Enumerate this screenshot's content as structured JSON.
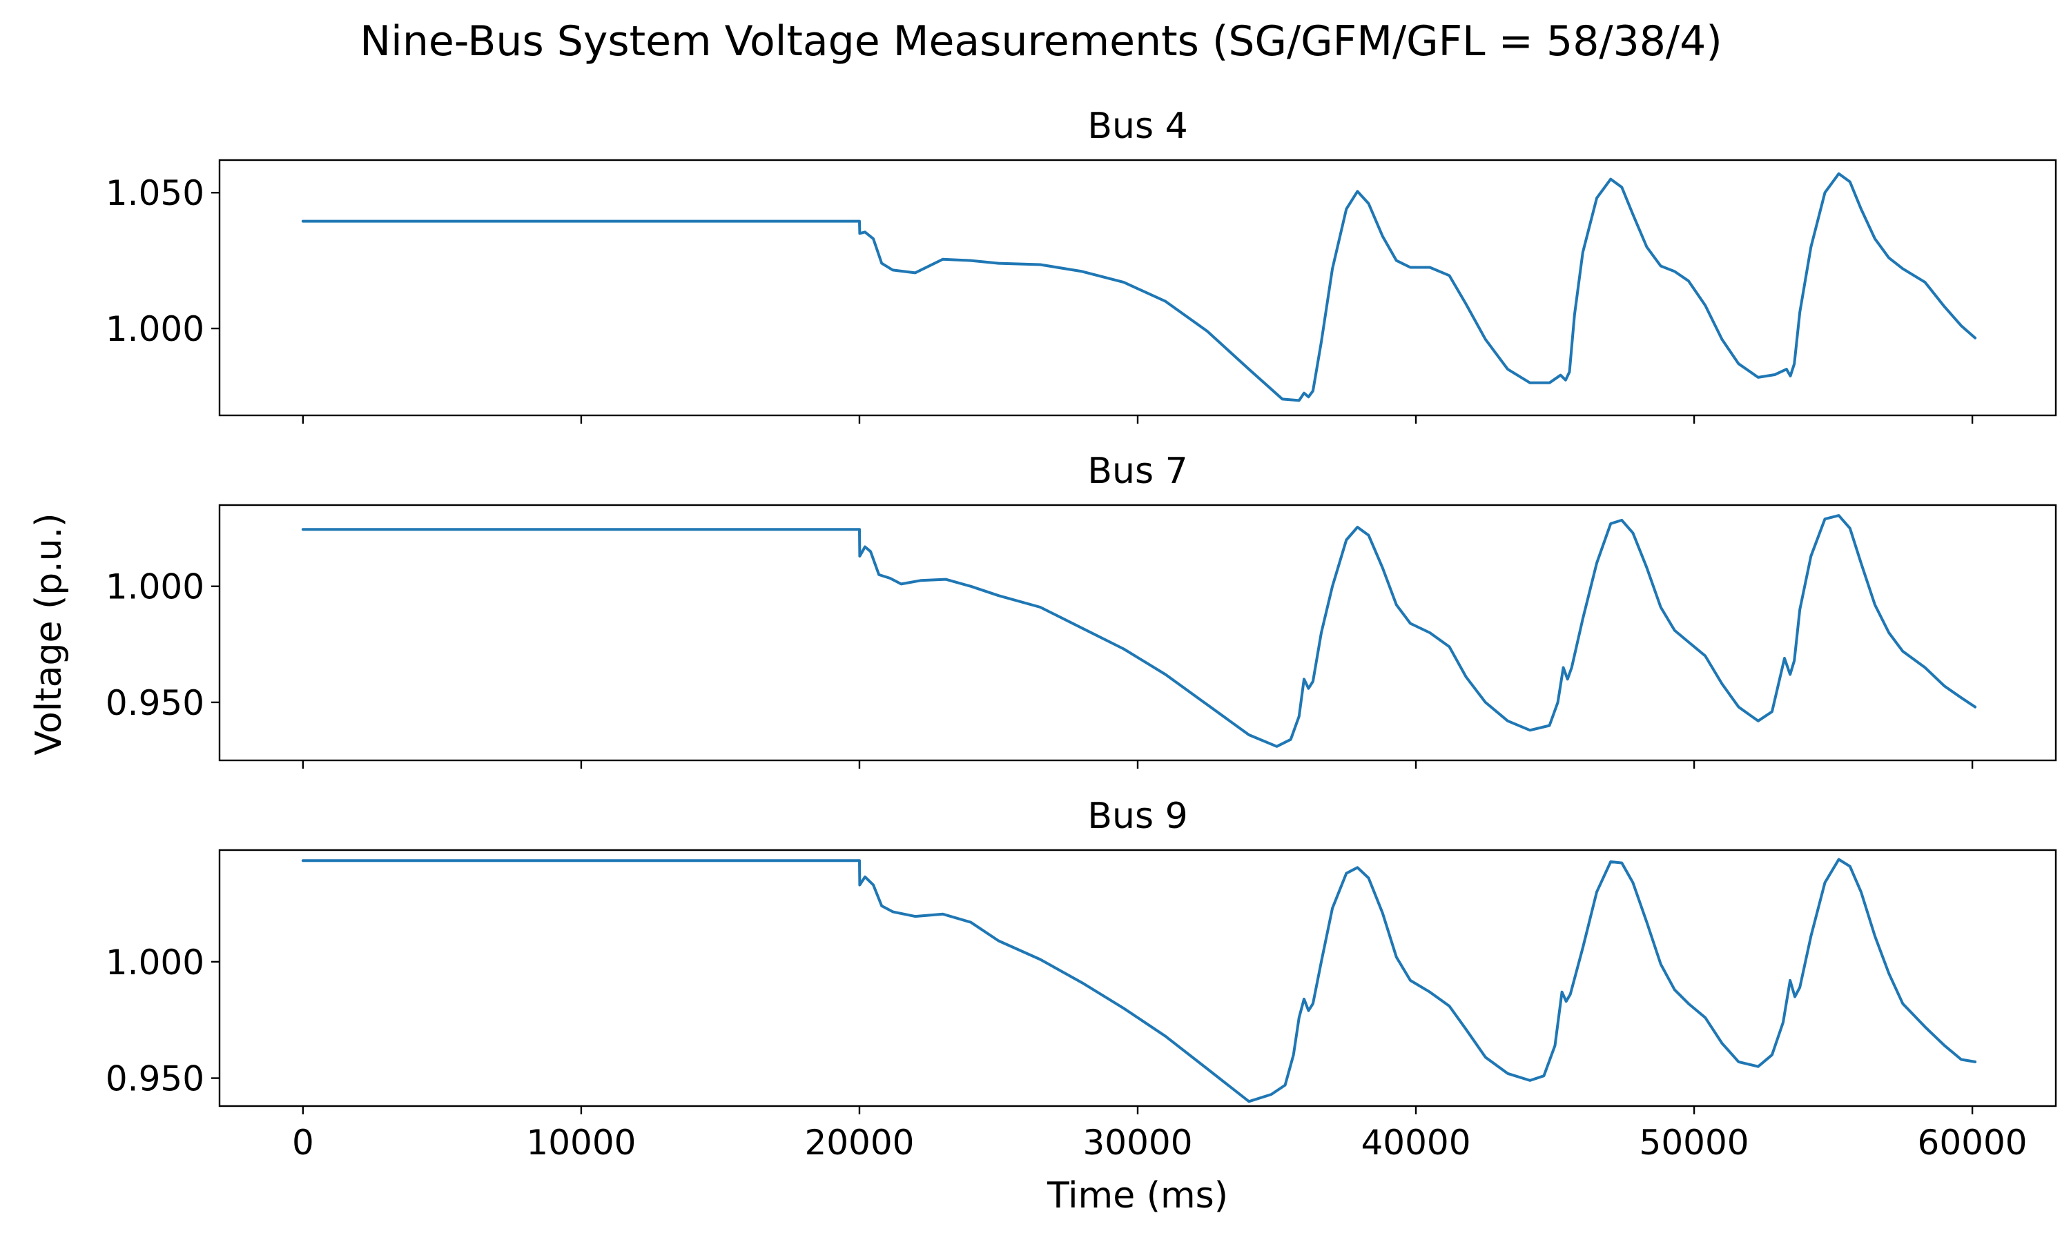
{
  "figure": {
    "title": "Nine-Bus System Voltage Measurements (SG/GFM/GFL = 58/38/4)",
    "xlabel": "Time (ms)",
    "ylabel": "Voltage (p.u.)",
    "line_color": "#1f77b4"
  },
  "chart_data": [
    {
      "type": "line",
      "title": "Bus 4",
      "xlim": [
        -3000,
        63000
      ],
      "ylim": [
        0.968,
        1.062
      ],
      "yticks": [
        1.0,
        1.05
      ],
      "ytick_labels": [
        "1.000",
        "1.050"
      ],
      "xticks": [
        0,
        10000,
        20000,
        30000,
        40000,
        50000,
        60000
      ],
      "xtick_labels": [],
      "series": [
        {
          "x": [
            0,
            20000,
            20010,
            20200,
            20500,
            20800,
            21200,
            22000,
            23000,
            24000,
            25000,
            26500,
            28000,
            29500,
            31000,
            32500,
            34000,
            35200,
            35800,
            35980,
            36140,
            36300,
            36600,
            37000,
            37500,
            37900,
            38300,
            38800,
            39300,
            39800,
            40500,
            41200,
            41800,
            42500,
            43300,
            44100,
            44800,
            45200,
            45380,
            45520,
            45700,
            46000,
            46500,
            47000,
            47400,
            47800,
            48300,
            48800,
            49300,
            49800,
            50400,
            51000,
            51600,
            52300,
            52900,
            53320,
            53460,
            53600,
            53800,
            54200,
            54700,
            55200,
            55600,
            56000,
            56500,
            57000,
            57500,
            58300,
            59000,
            59600,
            60100
          ],
          "y": [
            1.0395,
            1.0395,
            1.035,
            1.0355,
            1.033,
            1.024,
            1.0215,
            1.0205,
            1.0255,
            1.025,
            1.024,
            1.0235,
            1.021,
            1.017,
            1.01,
            0.999,
            0.985,
            0.974,
            0.9735,
            0.9762,
            0.9748,
            0.977,
            0.995,
            1.022,
            1.044,
            1.0505,
            1.046,
            1.034,
            1.025,
            1.0225,
            1.0225,
            1.0195,
            1.009,
            0.996,
            0.985,
            0.98,
            0.98,
            0.9828,
            0.981,
            0.984,
            1.005,
            1.028,
            1.048,
            1.055,
            1.052,
            1.042,
            1.03,
            1.023,
            1.021,
            1.0175,
            1.0085,
            0.996,
            0.987,
            0.982,
            0.983,
            0.985,
            0.9825,
            0.987,
            1.006,
            1.03,
            1.05,
            1.057,
            1.054,
            1.044,
            1.033,
            1.026,
            1.022,
            1.017,
            1.008,
            1.001,
            0.9965
          ]
        }
      ]
    },
    {
      "type": "line",
      "title": "Bus 7",
      "xlim": [
        -3000,
        63000
      ],
      "ylim": [
        0.925,
        1.035
      ],
      "yticks": [
        0.95,
        1.0
      ],
      "ytick_labels": [
        "0.950",
        "1.000"
      ],
      "xticks": [
        0,
        10000,
        20000,
        30000,
        40000,
        50000,
        60000
      ],
      "xtick_labels": [],
      "series": [
        {
          "x": [
            0,
            20000,
            20010,
            20200,
            20400,
            20700,
            21100,
            21500,
            22200,
            23100,
            24000,
            25000,
            26500,
            28000,
            29500,
            31000,
            32500,
            34000,
            35000,
            35500,
            35800,
            35980,
            36140,
            36300,
            36600,
            37000,
            37500,
            37900,
            38300,
            38800,
            39300,
            39800,
            40500,
            41200,
            41800,
            42500,
            43300,
            44100,
            44800,
            45100,
            45300,
            45450,
            45600,
            46000,
            46500,
            47000,
            47400,
            47800,
            48300,
            48800,
            49300,
            49800,
            50400,
            51000,
            51600,
            52300,
            52800,
            53250,
            53450,
            53600,
            53800,
            54200,
            54700,
            55200,
            55600,
            56000,
            56500,
            57000,
            57500,
            58300,
            59000,
            59600,
            60100
          ],
          "y": [
            1.0245,
            1.0245,
            1.013,
            1.017,
            1.015,
            1.005,
            1.0035,
            1.001,
            1.0025,
            1.003,
            1.0,
            0.996,
            0.991,
            0.982,
            0.973,
            0.962,
            0.949,
            0.936,
            0.931,
            0.934,
            0.944,
            0.96,
            0.956,
            0.959,
            0.98,
            1.0,
            1.02,
            1.0255,
            1.022,
            1.008,
            0.992,
            0.984,
            0.98,
            0.974,
            0.961,
            0.95,
            0.942,
            0.938,
            0.94,
            0.95,
            0.965,
            0.96,
            0.965,
            0.986,
            1.01,
            1.027,
            1.0285,
            1.023,
            1.008,
            0.991,
            0.981,
            0.976,
            0.97,
            0.958,
            0.948,
            0.942,
            0.946,
            0.969,
            0.962,
            0.968,
            0.99,
            1.013,
            1.029,
            1.0305,
            1.025,
            1.01,
            0.992,
            0.98,
            0.972,
            0.965,
            0.957,
            0.952,
            0.948
          ]
        }
      ]
    },
    {
      "type": "line",
      "title": "Bus 9",
      "xlim": [
        -3000,
        63000
      ],
      "ylim": [
        0.938,
        1.048
      ],
      "yticks": [
        0.95,
        1.0
      ],
      "ytick_labels": [
        "0.950",
        "1.000"
      ],
      "xticks": [
        0,
        10000,
        20000,
        30000,
        40000,
        50000,
        60000
      ],
      "xtick_labels": [
        "0",
        "10000",
        "20000",
        "30000",
        "40000",
        "50000",
        "60000"
      ],
      "series": [
        {
          "x": [
            0,
            20000,
            20010,
            20200,
            20500,
            20800,
            21200,
            22000,
            23000,
            24000,
            25000,
            26500,
            28000,
            29500,
            31000,
            32500,
            34000,
            34800,
            35300,
            35600,
            35800,
            35980,
            36140,
            36300,
            36600,
            37000,
            37500,
            37900,
            38300,
            38800,
            39300,
            39800,
            40500,
            41200,
            41800,
            42500,
            43300,
            44100,
            44600,
            45000,
            45250,
            45400,
            45550,
            46000,
            46500,
            47000,
            47400,
            47800,
            48300,
            48800,
            49300,
            49800,
            50400,
            51000,
            51600,
            52300,
            52800,
            53200,
            53450,
            53620,
            53800,
            54200,
            54700,
            55200,
            55600,
            56000,
            56500,
            57000,
            57500,
            58300,
            59000,
            59600,
            60100
          ],
          "y": [
            1.0435,
            1.0435,
            1.033,
            1.0365,
            1.033,
            1.024,
            1.0215,
            1.0195,
            1.0205,
            1.017,
            1.009,
            1.001,
            0.991,
            0.98,
            0.968,
            0.954,
            0.94,
            0.943,
            0.947,
            0.96,
            0.976,
            0.984,
            0.979,
            0.982,
            1.0,
            1.023,
            1.038,
            1.0405,
            1.036,
            1.021,
            1.002,
            0.992,
            0.987,
            0.981,
            0.971,
            0.959,
            0.952,
            0.949,
            0.951,
            0.964,
            0.987,
            0.983,
            0.986,
            1.006,
            1.03,
            1.043,
            1.0425,
            1.034,
            1.017,
            0.999,
            0.988,
            0.982,
            0.976,
            0.965,
            0.957,
            0.955,
            0.96,
            0.974,
            0.992,
            0.985,
            0.989,
            1.011,
            1.034,
            1.044,
            1.041,
            1.03,
            1.011,
            0.995,
            0.982,
            0.972,
            0.964,
            0.958,
            0.957
          ]
        }
      ]
    }
  ]
}
